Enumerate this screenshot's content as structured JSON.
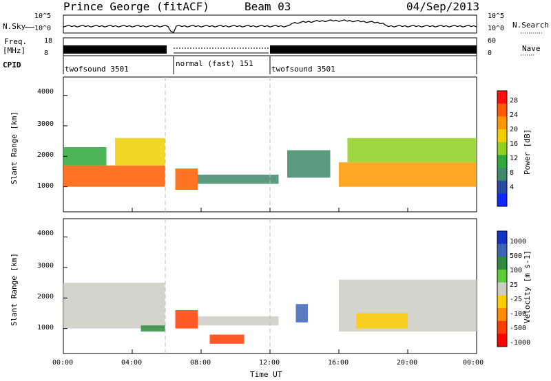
{
  "header": {
    "station": "Prince George (fitACF)",
    "beam": "Beam 03",
    "date": "04/Sep/2013"
  },
  "aux_panels": {
    "nsky_label": "N.Sky",
    "nsearch_label": "N.Search",
    "freq_label_1": "Freq.",
    "freq_label_2": "[MHz]",
    "nave_label": "Nave",
    "cpid_label": "CPID",
    "left_ticks_noise": [
      "10^5",
      "10^0"
    ],
    "right_ticks_noise": [
      "10^5",
      "10^0"
    ],
    "left_ticks_freq": [
      "18",
      "8"
    ],
    "right_ticks_nave": [
      "60",
      "0"
    ],
    "cpid_segments": [
      {
        "label": "twofsound 3501",
        "start_hour": 0.0,
        "end_hour": 6.15
      },
      {
        "label": "normal (fast) 151",
        "start_hour": 6.15,
        "end_hour": 12.0
      },
      {
        "label": "twofsound 3501",
        "start_hour": 12.0,
        "end_hour": 24.0
      }
    ]
  },
  "power_scale": {
    "label": "Power [dB]",
    "ticks": [
      "28",
      "24",
      "20",
      "16",
      "12",
      "8",
      "4"
    ],
    "colors": [
      "#1028ff",
      "#2a4aa6",
      "#3f8a6a",
      "#2ea83a",
      "#8fd020",
      "#f0d000",
      "#ff9800",
      "#ff5a00",
      "#ff1010"
    ]
  },
  "velocity_scale": {
    "label": "Velocity [m s-1]",
    "ticks": [
      "1000",
      "500",
      "100",
      "25",
      "-25",
      "-100",
      "-500",
      "-1000"
    ],
    "colors": [
      "#1432c8",
      "#3c64b4",
      "#2e8c3c",
      "#5fcc3a",
      "#cdcdc3",
      "#ffcc00",
      "#ff8c00",
      "#ff3c00",
      "#ff0000"
    ]
  },
  "axes": {
    "ylabel": "Slant Range [km]",
    "xlabel": "Time UT",
    "yticks": [
      "4000",
      "3000",
      "2000",
      "1000"
    ],
    "xticks": [
      "00:00",
      "04:00",
      "08:00",
      "12:00",
      "16:00",
      "20:00",
      "00:00"
    ]
  },
  "chart_data": [
    {
      "type": "heatmap",
      "title": "",
      "quantity": "Power",
      "unit": "dB",
      "xlabel": "Time UT",
      "ylabel": "Slant Range [km]",
      "xlim_hours": [
        0,
        24
      ],
      "ylim_km": [
        180,
        4600
      ],
      "color_range": [
        0,
        30
      ],
      "regions": [
        {
          "start_hour": 0.0,
          "end_hour": 5.9,
          "range_km": [
            1000,
            1700
          ],
          "level_db": 26
        },
        {
          "start_hour": 3.0,
          "end_hour": 5.9,
          "range_km": [
            1700,
            2600
          ],
          "level_db": 20
        },
        {
          "start_hour": 0.0,
          "end_hour": 2.5,
          "range_km": [
            1700,
            2300
          ],
          "level_db": 10
        },
        {
          "start_hour": 6.5,
          "end_hour": 7.8,
          "range_km": [
            900,
            1600
          ],
          "level_db": 28
        },
        {
          "start_hour": 7.8,
          "end_hour": 12.5,
          "range_km": [
            1100,
            1400
          ],
          "level_db": 8
        },
        {
          "start_hour": 13.0,
          "end_hour": 15.5,
          "range_km": [
            1300,
            2200
          ],
          "level_db": 8
        },
        {
          "start_hour": 16.0,
          "end_hour": 24.0,
          "range_km": [
            1000,
            1800
          ],
          "level_db": 24
        },
        {
          "start_hour": 16.5,
          "end_hour": 24.0,
          "range_km": [
            1800,
            2600
          ],
          "level_db": 16
        }
      ]
    },
    {
      "type": "heatmap",
      "title": "",
      "quantity": "Velocity",
      "unit": "m s-1",
      "xlabel": "Time UT",
      "ylabel": "Slant Range [km]",
      "xlim_hours": [
        0,
        24
      ],
      "ylim_km": [
        180,
        4600
      ],
      "regions": [
        {
          "start_hour": 0.0,
          "end_hour": 5.9,
          "range_km": [
            1000,
            2500
          ],
          "velocity": 0
        },
        {
          "start_hour": 4.5,
          "end_hour": 5.9,
          "range_km": [
            900,
            1100
          ],
          "velocity": 100
        },
        {
          "start_hour": 6.5,
          "end_hour": 7.8,
          "range_km": [
            1000,
            1600
          ],
          "velocity": -500
        },
        {
          "start_hour": 7.8,
          "end_hour": 12.5,
          "range_km": [
            1100,
            1400
          ],
          "velocity": 0
        },
        {
          "start_hour": 8.5,
          "end_hour": 10.5,
          "range_km": [
            500,
            800
          ],
          "velocity": -500
        },
        {
          "start_hour": 13.5,
          "end_hour": 14.2,
          "range_km": [
            1200,
            1800
          ],
          "velocity": 300
        },
        {
          "start_hour": 16.0,
          "end_hour": 24.0,
          "range_km": [
            900,
            2600
          ],
          "velocity": 0
        },
        {
          "start_hour": 17.0,
          "end_hour": 20.0,
          "range_km": [
            1000,
            1500
          ],
          "velocity": -50
        }
      ]
    }
  ]
}
